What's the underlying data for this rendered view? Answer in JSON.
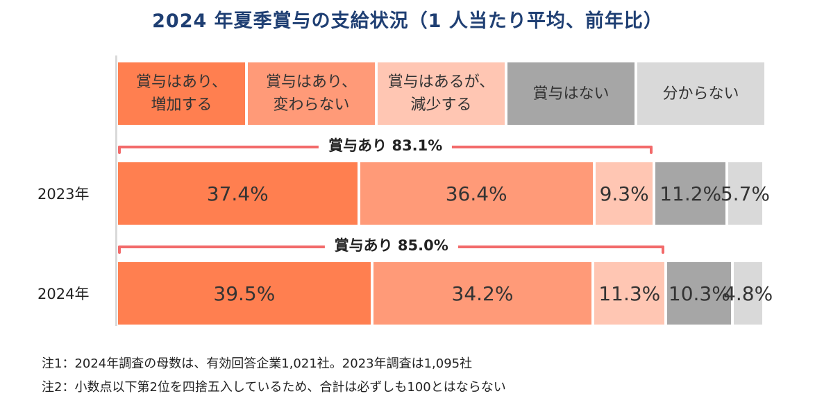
{
  "chart_data": {
    "type": "bar",
    "orientation": "horizontal-stacked-100",
    "title": "2024 年夏季賞与の支給状況（1 人当たり平均、前年比）",
    "categories": [
      "2023年",
      "2024年"
    ],
    "series": [
      {
        "name": "賞与はあり、\n増加する",
        "color": "#ff7f50",
        "values": [
          37.4,
          39.5
        ],
        "labels": [
          "37.4%",
          "39.5%"
        ]
      },
      {
        "name": "賞与はあり、\n変わらない",
        "color": "#ff9a78",
        "values": [
          36.4,
          34.2
        ],
        "labels": [
          "36.4%",
          "34.2%"
        ]
      },
      {
        "name": "賞与はあるが、\n減少する",
        "color": "#ffc6b3",
        "values": [
          9.3,
          11.3
        ],
        "labels": [
          "9.3%",
          "11.3%"
        ]
      },
      {
        "name": "賞与はない",
        "color": "#a6a6a6",
        "values": [
          11.2,
          10.3
        ],
        "labels": [
          "11.2%",
          "10.3%"
        ]
      },
      {
        "name": "分からない",
        "color": "#d9d9d9",
        "values": [
          5.7,
          4.8
        ],
        "labels": [
          "5.7%",
          "4.8%"
        ]
      }
    ],
    "annotations": [
      {
        "category": "2023年",
        "text": "賞与あり 83.1%",
        "value": 83.1
      },
      {
        "category": "2024年",
        "text": "賞与あり 85.0%",
        "value": 85.0
      }
    ],
    "xlim": [
      0,
      100
    ],
    "legend": "top",
    "grid": false
  },
  "notes": [
    "注1：2024年調査の母数は、有効回答企業1,021社。2023年調査は1,095社",
    "注2：小数点以下第2位を四捨五入しているため、合計は必ずしも100とはならない"
  ]
}
